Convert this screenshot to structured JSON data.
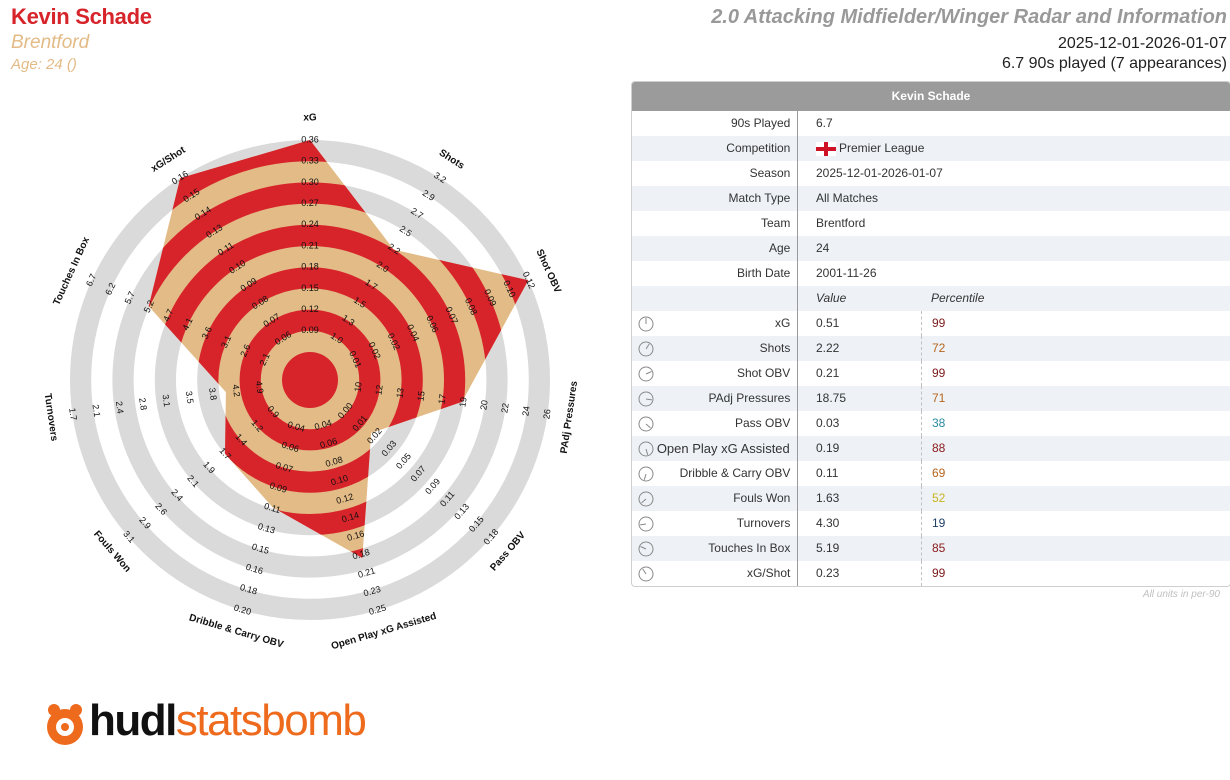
{
  "header": {
    "player_name": "Kevin Schade",
    "team": "Brentford",
    "age_line": "Age: 24 ()",
    "title": "2.0 Attacking Midfielder/Winger Radar and Information",
    "date_range": "2025-12-01-2026-01-07",
    "played_line": "6.7 90s played (7 appearances)"
  },
  "table": {
    "title": "Kevin Schade",
    "info_rows": [
      {
        "label": "90s Played",
        "value": "6.7"
      },
      {
        "label": "Competition",
        "value": "Premier League",
        "flag": "england-flag"
      },
      {
        "label": "Season",
        "value": "2025-12-01-2026-01-07"
      },
      {
        "label": "Match Type",
        "value": "All Matches"
      },
      {
        "label": "Team",
        "value": "Brentford"
      },
      {
        "label": "Age",
        "value": "24"
      },
      {
        "label": "Birth Date",
        "value": "2001-11-26"
      }
    ],
    "value_header": "Value",
    "percentile_header": "Percentile",
    "metric_rows": [
      {
        "label": "xG",
        "value": "0.51",
        "percentile": "99",
        "color": "#7a1b1b"
      },
      {
        "label": "Shots",
        "value": "2.22",
        "percentile": "72",
        "color": "#b5651d"
      },
      {
        "label": "Shot OBV",
        "value": "0.21",
        "percentile": "99",
        "color": "#7a1b1b"
      },
      {
        "label": "PAdj Pressures",
        "value": "18.75",
        "percentile": "71",
        "color": "#b5651d"
      },
      {
        "label": "Pass OBV",
        "value": "0.03",
        "percentile": "38",
        "color": "#2a8aa0"
      },
      {
        "label": "Open Play xG Assisted",
        "value": "0.19",
        "percentile": "88",
        "color": "#8b1a1a"
      },
      {
        "label": "Dribble & Carry OBV",
        "value": "0.11",
        "percentile": "69",
        "color": "#b5651d"
      },
      {
        "label": "Fouls Won",
        "value": "1.63",
        "percentile": "52",
        "color": "#c8b41e"
      },
      {
        "label": "Turnovers",
        "value": "4.30",
        "percentile": "19",
        "color": "#1f3f66"
      },
      {
        "label": "Touches In Box",
        "value": "5.19",
        "percentile": "85",
        "color": "#8b1a1a"
      },
      {
        "label": "xG/Shot",
        "value": "0.23",
        "percentile": "99",
        "color": "#7a1b1b"
      }
    ],
    "footnote": "All units in per-90"
  },
  "logo": {
    "hudl": "hudl",
    "statsbomb": "statsbomb"
  },
  "chart_data": {
    "type": "radar",
    "rings": 10,
    "colors": {
      "fill_a": "#d7242b",
      "fill_b": "#e3bb86",
      "grid": "#dadada"
    },
    "axes": [
      {
        "name": "xG",
        "value": 0.36,
        "ticks": [
          "0.09",
          "0.12",
          "0.15",
          "0.18",
          "0.21",
          "0.24",
          "0.27",
          "0.30",
          "0.33",
          "0.36"
        ]
      },
      {
        "name": "Shots",
        "value": 2.22,
        "ticks": [
          "1.0",
          "1.3",
          "1.5",
          "1.7",
          "2.0",
          "2.2",
          "2.5",
          "2.7",
          "2.9",
          "3.2"
        ]
      },
      {
        "name": "Shot OBV",
        "value": 0.12,
        "ticks": [
          "0.01",
          "0.02",
          "0.02",
          "0.04",
          "0.06",
          "0.07",
          "0.08",
          "0.09",
          "0.10",
          "0.12"
        ]
      },
      {
        "name": "PAdj Pressures",
        "value": 18.75,
        "ticks": [
          "10",
          "12",
          "13",
          "15",
          "17",
          "19",
          "20",
          "22",
          "24",
          "26"
        ]
      },
      {
        "name": "Pass OBV",
        "value": 0.03,
        "ticks": [
          "0.00",
          "0.01",
          "0.02",
          "0.03",
          "0.05",
          "0.07",
          "0.09",
          "0.11",
          "0.13",
          "0.15",
          "0.18"
        ]
      },
      {
        "name": "Open Play xG Assisted",
        "value": 0.19,
        "ticks": [
          "0.04",
          "0.06",
          "0.08",
          "0.10",
          "0.12",
          "0.14",
          "0.16",
          "0.18",
          "0.21",
          "0.23",
          "0.25"
        ]
      },
      {
        "name": "Dribble & Carry OBV",
        "value": 0.11,
        "ticks": [
          "0.04",
          "0.06",
          "0.07",
          "0.09",
          "0.11",
          "0.13",
          "0.15",
          "0.16",
          "0.18",
          "0.20"
        ]
      },
      {
        "name": "Fouls Won",
        "value": 1.63,
        "ticks": [
          "0.9",
          "1.2",
          "1.4",
          "1.7",
          "1.9",
          "2.1",
          "2.4",
          "2.6",
          "2.9",
          "3.1"
        ]
      },
      {
        "name": "Turnovers",
        "value": 4.3,
        "ticks": [
          "4.9",
          "4.2",
          "3.8",
          "3.5",
          "3.1",
          "2.8",
          "2.4",
          "2.1",
          "1.7"
        ]
      },
      {
        "name": "Touches In Box",
        "value": 5.19,
        "ticks": [
          "2.1",
          "2.6",
          "3.1",
          "3.6",
          "4.1",
          "4.7",
          "5.2",
          "5.7",
          "6.2",
          "6.7"
        ]
      },
      {
        "name": "xG/Shot",
        "value": 0.16,
        "ticks": [
          "0.06",
          "0.07",
          "0.08",
          "0.09",
          "0.10",
          "0.11",
          "0.13",
          "0.14",
          "0.15",
          "0.16"
        ]
      }
    ]
  }
}
